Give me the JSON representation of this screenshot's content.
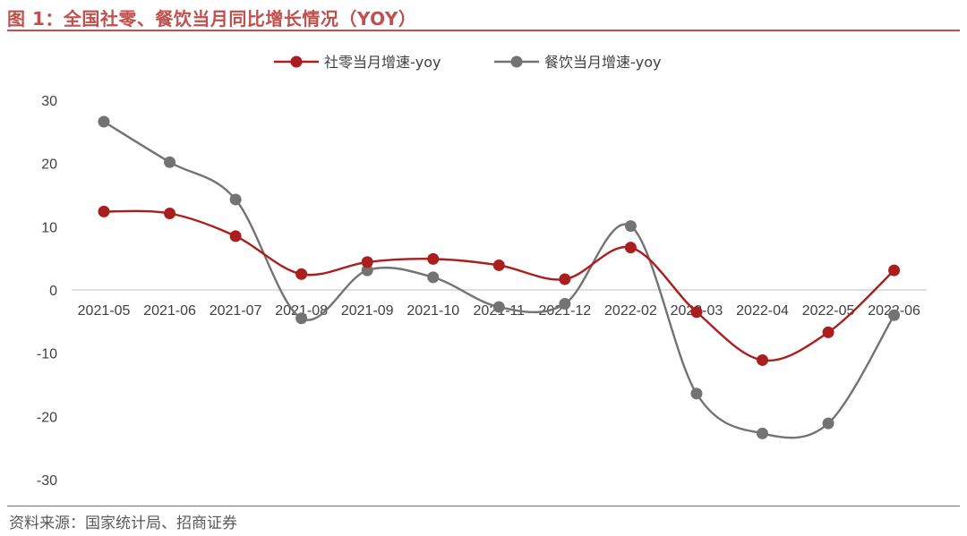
{
  "header": {
    "title": "图 1：全国社零、餐饮当月同比增长情况（YOY）"
  },
  "footer": {
    "source": "资料来源：国家统计局、招商证券"
  },
  "chart_data": {
    "type": "line",
    "categories": [
      "2021-05",
      "2021-06",
      "2021-07",
      "2021-08",
      "2021-09",
      "2021-10",
      "2021-11",
      "2021-12",
      "2022-02",
      "2022-03",
      "2022-04",
      "2022-05",
      "2022-06"
    ],
    "yticks": [
      30,
      20,
      10,
      0,
      -10,
      -20,
      -30
    ],
    "ylim": [
      -30,
      30
    ],
    "grid": false,
    "legend_position": "top",
    "series": [
      {
        "name": "社零当月增速-yoy",
        "color": "#aa1e1e",
        "values": [
          12.4,
          12.1,
          8.5,
          2.5,
          4.4,
          4.9,
          3.9,
          1.7,
          6.7,
          -3.5,
          -11.1,
          -6.7,
          3.1
        ]
      },
      {
        "name": "餐饮当月增速-yoy",
        "color": "#737373",
        "values": [
          26.6,
          20.2,
          14.3,
          -4.5,
          3.1,
          2.0,
          -2.7,
          -2.2,
          10.1,
          -16.4,
          -22.7,
          -21.1,
          -4.0
        ]
      }
    ]
  }
}
